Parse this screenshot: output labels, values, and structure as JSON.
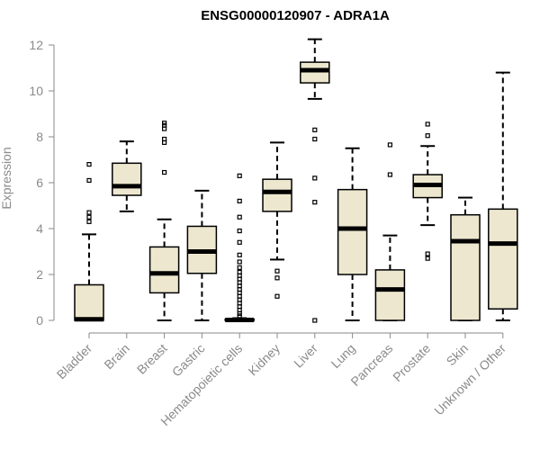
{
  "chart_data": {
    "type": "boxplot",
    "title": "ENSG00000120907 - ADRA1A",
    "xlabel": "",
    "ylabel": "Expression",
    "ylim": [
      0,
      12
    ],
    "yticks": [
      0,
      2,
      4,
      6,
      8,
      10,
      12
    ],
    "box_color": "#EDE7CF",
    "categories": [
      "Bladder",
      "Brain",
      "Breast",
      "Gastric",
      "Hematopoietic cells",
      "Kidney",
      "Liver",
      "Lung",
      "Pancreas",
      "Prostate",
      "Skin",
      "Unknown / Other"
    ],
    "boxes": [
      {
        "min": 0,
        "q1": 0,
        "median": 0.05,
        "q3": 1.55,
        "max": 3.75,
        "outliers": [
          4.3,
          4.5,
          4.7,
          6.1,
          6.8
        ]
      },
      {
        "min": 4.75,
        "q1": 5.45,
        "median": 5.85,
        "q3": 6.85,
        "max": 7.8,
        "outliers": []
      },
      {
        "min": 0,
        "q1": 1.2,
        "median": 2.05,
        "q3": 3.2,
        "max": 4.4,
        "outliers": [
          6.45,
          7.75,
          7.9,
          8.35,
          8.5,
          8.6
        ]
      },
      {
        "min": 0,
        "q1": 2.05,
        "median": 3.0,
        "q3": 4.1,
        "max": 5.65,
        "outliers": []
      },
      {
        "min": 0,
        "q1": 0,
        "median": 0.02,
        "q3": 0.05,
        "max": 0.1,
        "outliers": [
          0.2,
          0.3,
          0.45,
          0.6,
          0.75,
          0.9,
          1.05,
          1.2,
          1.35,
          1.5,
          1.65,
          1.8,
          1.95,
          2.1,
          2.3,
          2.55,
          2.85,
          3.4,
          3.9,
          4.5,
          5.2,
          6.3
        ]
      },
      {
        "min": 2.65,
        "q1": 4.75,
        "median": 5.6,
        "q3": 6.15,
        "max": 7.75,
        "outliers": [
          1.05,
          1.85,
          2.15
        ]
      },
      {
        "min": 9.65,
        "q1": 10.35,
        "median": 10.9,
        "q3": 11.25,
        "max": 12.25,
        "outliers": [
          0,
          5.15,
          6.2,
          7.9,
          8.3
        ]
      },
      {
        "min": 0,
        "q1": 2.0,
        "median": 4.0,
        "q3": 5.7,
        "max": 7.5,
        "outliers": []
      },
      {
        "min": 0,
        "q1": 0,
        "median": 1.35,
        "q3": 2.2,
        "max": 3.7,
        "outliers": [
          6.35,
          7.65
        ]
      },
      {
        "min": 4.15,
        "q1": 5.35,
        "median": 5.9,
        "q3": 6.35,
        "max": 7.6,
        "outliers": [
          2.7,
          2.9,
          8.05,
          8.55
        ]
      },
      {
        "min": 0,
        "q1": 0,
        "median": 3.45,
        "q3": 4.6,
        "max": 5.35,
        "outliers": []
      },
      {
        "min": 0,
        "q1": 0.5,
        "median": 3.35,
        "q3": 4.85,
        "max": 10.8,
        "outliers": []
      }
    ]
  }
}
